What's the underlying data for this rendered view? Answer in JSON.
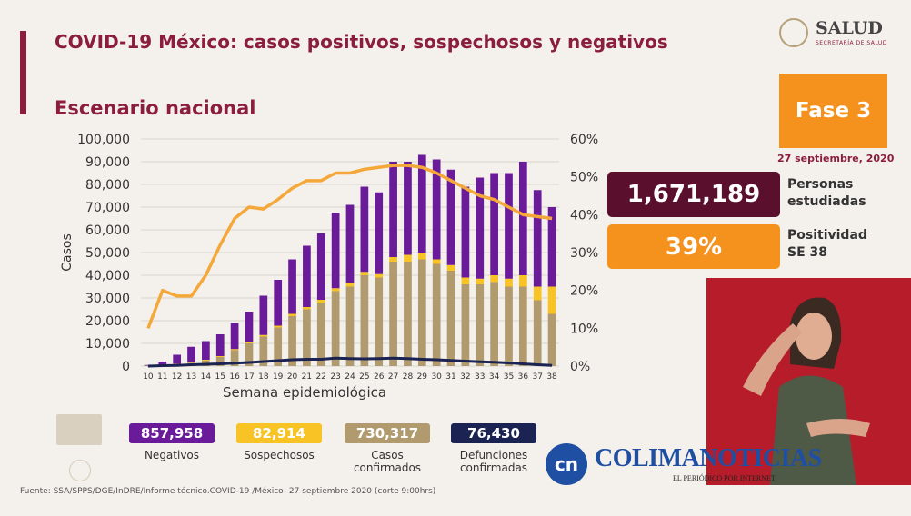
{
  "title": "COVID-19 México: casos positivos, sospechosos y negativos",
  "subtitle": "Escenario nacional",
  "logo": {
    "name": "SALUD",
    "sub": "SECRETARÍA DE SALUD"
  },
  "phase": "Fase 3",
  "date": "27 septiembre, 2020",
  "stats": [
    {
      "value": "1,671,189",
      "label_line1": "Personas",
      "label_line2": "estudiadas",
      "color": "#5a0f2c"
    },
    {
      "value": "39%",
      "label_line1": "Positividad",
      "label_line2": "SE 38",
      "color": "#f5921e"
    }
  ],
  "summary": [
    {
      "value": "857,958",
      "label_line1": "Negativos",
      "label_line2": "",
      "bg": "#6a1b9a",
      "fg": "#ffffff"
    },
    {
      "value": "82,914",
      "label_line1": "Sospechosos",
      "label_line2": "",
      "bg": "#f7c325",
      "fg": "#ffffff"
    },
    {
      "value": "730,317",
      "label_line1": "Casos",
      "label_line2": "confirmados",
      "bg": "#b09a6e",
      "fg": "#ffffff"
    },
    {
      "value": "76,430",
      "label_line1": "Defunciones",
      "label_line2": "confirmadas",
      "bg": "#1b2352",
      "fg": "#ffffff"
    }
  ],
  "footer": "Fuente: SSA/SPPS/DGE/InDRE/Informe técnico.COVID-19 /México- 27 septiembre 2020 (corte 9:00hrs)",
  "watermark": {
    "initials": "cn",
    "name": "COLIMANOTICIAS",
    "tagline": "EL PERIÓDICO POR INTERNET"
  },
  "chart_data": {
    "type": "bar",
    "stacked": true,
    "xlabel": "Semana epidemiológica",
    "ylabel": "Casos",
    "ylim": [
      0,
      100000
    ],
    "y2lim": [
      0,
      60
    ],
    "yticks": [
      "0",
      "10,000",
      "20,000",
      "30,000",
      "40,000",
      "50,000",
      "60,000",
      "70,000",
      "80,000",
      "90,000",
      "100,000"
    ],
    "y2ticks": [
      "0%",
      "10%",
      "20%",
      "30%",
      "40%",
      "50%",
      "60%"
    ],
    "categories": [
      "10",
      "11",
      "12",
      "13",
      "14",
      "15",
      "16",
      "17",
      "18",
      "19",
      "20",
      "21",
      "22",
      "23",
      "24",
      "25",
      "26",
      "27",
      "28",
      "29",
      "30",
      "31",
      "32",
      "33",
      "34",
      "35",
      "36",
      "37",
      "38"
    ],
    "series": [
      {
        "name": "Casos confirmados",
        "kind": "bar",
        "color": "#b09a6e",
        "values": [
          200,
          500,
          800,
          1500,
          2500,
          4000,
          7000,
          10000,
          13000,
          17000,
          22000,
          25000,
          28000,
          33000,
          35000,
          40000,
          39000,
          46000,
          46000,
          47000,
          45000,
          42000,
          36000,
          36000,
          37000,
          35000,
          35000,
          29000,
          23000
        ]
      },
      {
        "name": "Sospechosos",
        "kind": "bar",
        "color": "#f7c325",
        "values": [
          50,
          100,
          150,
          200,
          300,
          400,
          500,
          600,
          700,
          800,
          1000,
          1000,
          1200,
          1300,
          1500,
          1500,
          1500,
          2000,
          3000,
          3000,
          2000,
          2500,
          3000,
          2500,
          3000,
          3500,
          5000,
          6000,
          12000
        ]
      },
      {
        "name": "Negativos",
        "kind": "bar",
        "color": "#6a1b9a",
        "values": [
          250,
          1400,
          4050,
          6800,
          8200,
          9600,
          11500,
          13400,
          17300,
          20200,
          24000,
          27000,
          29300,
          33200,
          34500,
          37500,
          36000,
          42000,
          41000,
          43000,
          44000,
          42000,
          40000,
          44500,
          45000,
          46500,
          50000,
          42500,
          35000
        ]
      },
      {
        "name": "Defunciones",
        "kind": "line",
        "color": "#1b2352",
        "values": [
          0,
          200,
          300,
          600,
          800,
          1000,
          1300,
          1600,
          2000,
          2400,
          2800,
          3000,
          3000,
          3500,
          3300,
          3200,
          3300,
          3500,
          3300,
          3000,
          2800,
          2500,
          2200,
          1900,
          1700,
          1400,
          1000,
          600,
          300
        ]
      },
      {
        "name": "Positividad",
        "kind": "line",
        "axis": "y2",
        "color": "#f5a83a",
        "values": [
          10,
          20,
          18.5,
          18.5,
          24,
          32,
          39,
          42,
          41.5,
          44,
          47,
          49,
          49,
          51,
          51,
          52,
          52.5,
          53,
          53,
          52.5,
          51,
          49,
          47,
          45,
          44,
          42,
          40,
          39.5,
          39
        ]
      }
    ],
    "grid": true,
    "legend": "none"
  }
}
